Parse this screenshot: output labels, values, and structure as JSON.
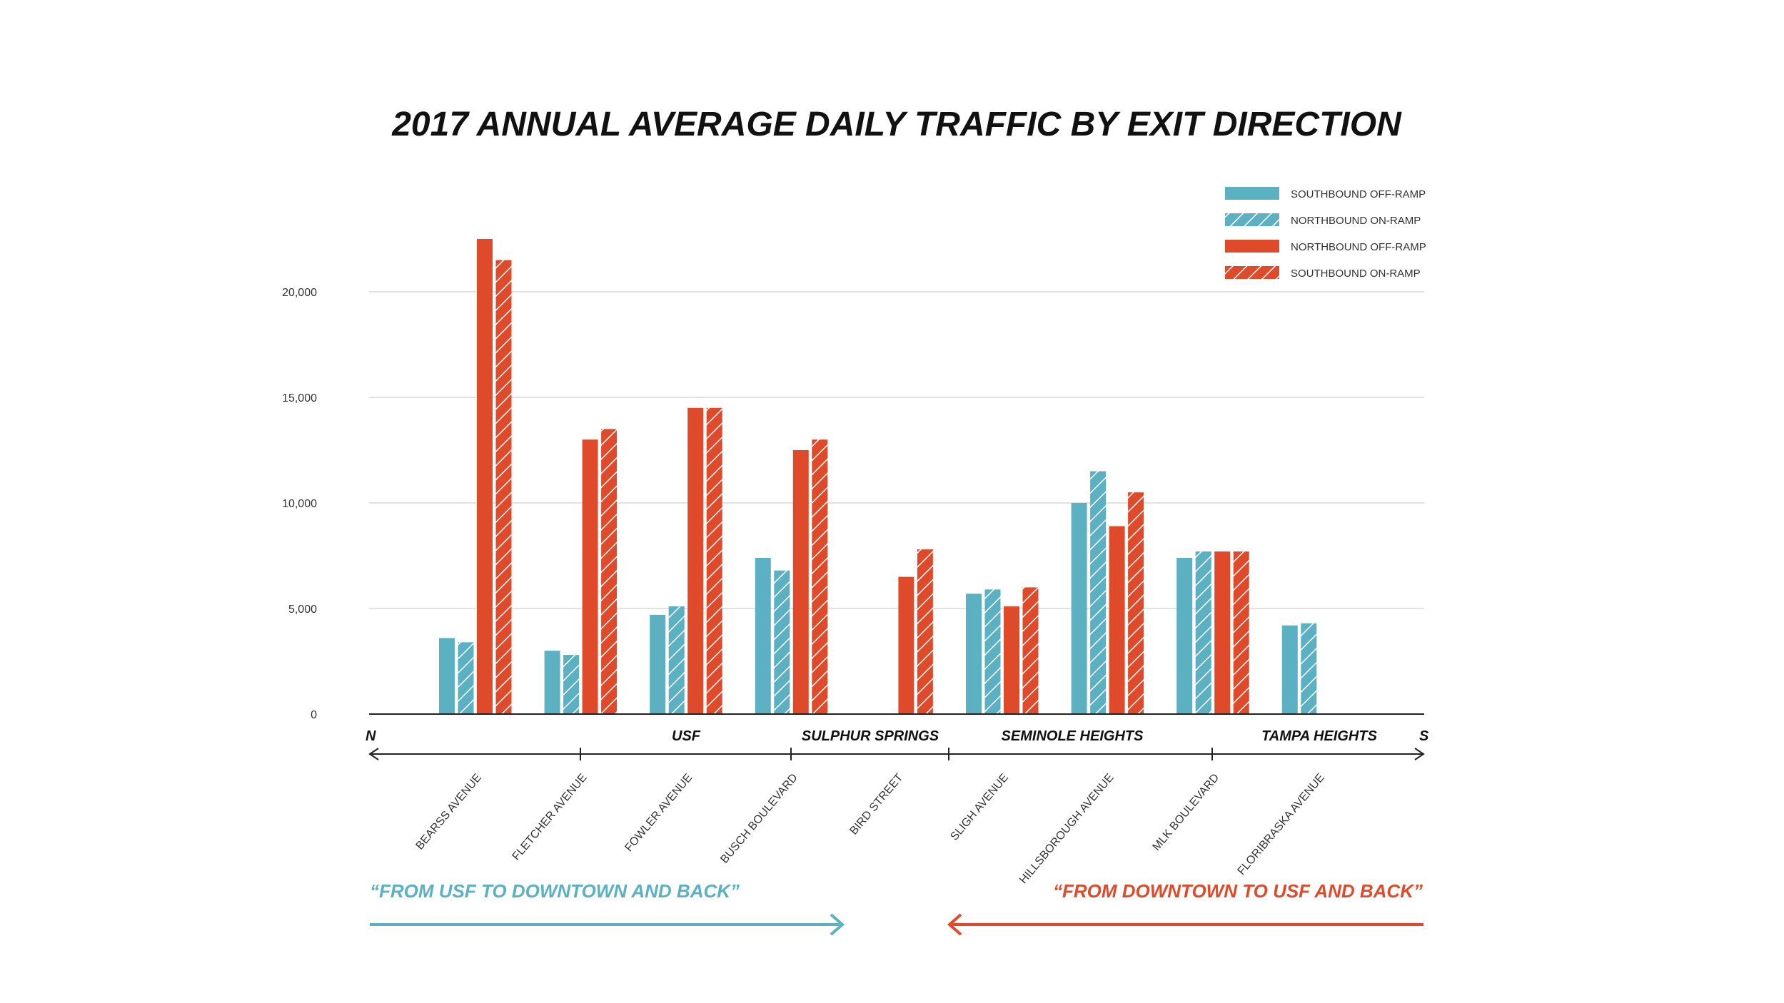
{
  "chart_data": {
    "type": "bar",
    "title": "2017 ANNUAL AVERAGE DAILY TRAFFIC BY EXIT DIRECTION",
    "ylim": [
      0,
      22500
    ],
    "yticks": [
      0,
      5000,
      10000,
      15000,
      20000
    ],
    "ytick_labels": [
      "0",
      "5,000",
      "10,000",
      "15,000",
      "20,000"
    ],
    "grid": true,
    "legend_position": "top-right",
    "categories": [
      "BEARSS AVENUE",
      "FLETCHER AVENUE",
      "FOWLER AVENUE",
      "BUSCH BOULEVARD",
      "BIRD STREET",
      "SLIGH AVENUE",
      "HILLSBOROUGH AVENUE",
      "MLK BOULEVARD",
      "FLORIBRASKA AVENUE"
    ],
    "series": [
      {
        "name": "SOUTHBOUND OFF-RAMP",
        "color": "#5BB0C1",
        "pattern": "solid",
        "values": [
          3600,
          3000,
          4700,
          7400,
          null,
          5700,
          10000,
          7400,
          4200
        ]
      },
      {
        "name": "NORTHBOUND ON-RAMP",
        "color": "#5BB0C1",
        "pattern": "hatched",
        "values": [
          3400,
          2800,
          5100,
          6800,
          null,
          5900,
          11500,
          7700,
          4300
        ]
      },
      {
        "name": "NORTHBOUND OFF-RAMP",
        "color": "#DF4A2B",
        "pattern": "solid",
        "values": [
          22500,
          13000,
          14500,
          12500,
          6500,
          5100,
          8900,
          7700,
          null
        ]
      },
      {
        "name": "SOUTHBOUND ON-RAMP",
        "color": "#DF4A2B",
        "pattern": "hatched",
        "values": [
          21500,
          13500,
          14500,
          13000,
          7800,
          6000,
          10500,
          7700,
          null
        ]
      }
    ],
    "axis_ends": {
      "left": "N",
      "right": "S"
    },
    "regions": [
      "USF",
      "SULPHUR SPRINGS",
      "SEMINOLE HEIGHTS",
      "TAMPA HEIGHTS"
    ],
    "annotations": {
      "left": {
        "text": "“FROM USF TO DOWNTOWN AND BACK”",
        "color": "#5BB0C1"
      },
      "right": {
        "text": "“FROM DOWNTOWN TO USF AND BACK”",
        "color": "#DF4A2B"
      }
    }
  },
  "colors": {
    "teal": "#5BB0C1",
    "red": "#DF4A2B",
    "grid": "#d9d9d9",
    "axis": "#222222"
  }
}
